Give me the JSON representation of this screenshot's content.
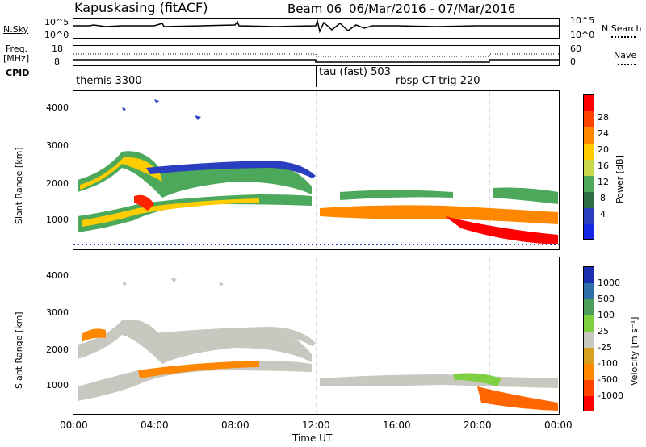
{
  "header": {
    "station": "Kapuskasing (fitACF)",
    "beam": "Beam 06",
    "dates": "06/Mar/2016 - 07/Mar/2016"
  },
  "noise_panel": {
    "left_label": "N.Sky",
    "left_ticks": [
      "10^5",
      "10^0"
    ],
    "right_ticks": [
      "10^5",
      "10^0"
    ],
    "right_label": "N.Search"
  },
  "freq_panel": {
    "left_label_1": "Freq.",
    "left_label_2": "[MHz]",
    "left_ticks": [
      "18",
      "8"
    ],
    "right_ticks": [
      "60",
      "0"
    ],
    "right_label": "Nave"
  },
  "cpid_panel": {
    "label": "CPID",
    "programs": [
      "themis 3300",
      "tau (fast) 503",
      "rbsp CT-trig 220"
    ]
  },
  "power_panel": {
    "ylabel": "Slant Range [km]",
    "yticks": [
      "4000",
      "3000",
      "2000",
      "1000"
    ],
    "colorbar_label": "Power [dB]",
    "colorbar_ticks": [
      "28",
      "24",
      "20",
      "16",
      "12",
      "8",
      "4"
    ],
    "colors": [
      "#ff0000",
      "#ff4400",
      "#ff8800",
      "#ffcc00",
      "#c8d84a",
      "#4ca85a",
      "#2e6e44",
      "#2a3fbf",
      "#1428e6"
    ]
  },
  "velocity_panel": {
    "ylabel": "Slant Range [km]",
    "yticks": [
      "4000",
      "3000",
      "2000",
      "1000"
    ],
    "colorbar_label": "Velocity [m s⁻¹]",
    "colorbar_ticks": [
      "1000",
      "500",
      "100",
      "25",
      "-25",
      "-100",
      "-500",
      "-1000"
    ],
    "colors": [
      "#1a2fb0",
      "#2f6fa8",
      "#4c9c5a",
      "#7fd040",
      "#c8c8c0",
      "#d8a020",
      "#ff8800",
      "#ff4400",
      "#ff0000"
    ]
  },
  "xaxis": {
    "ticks": [
      "00:00",
      "04:00",
      "08:00",
      "12:00",
      "16:00",
      "20:00",
      "00:00"
    ],
    "label": "Time UT"
  }
}
